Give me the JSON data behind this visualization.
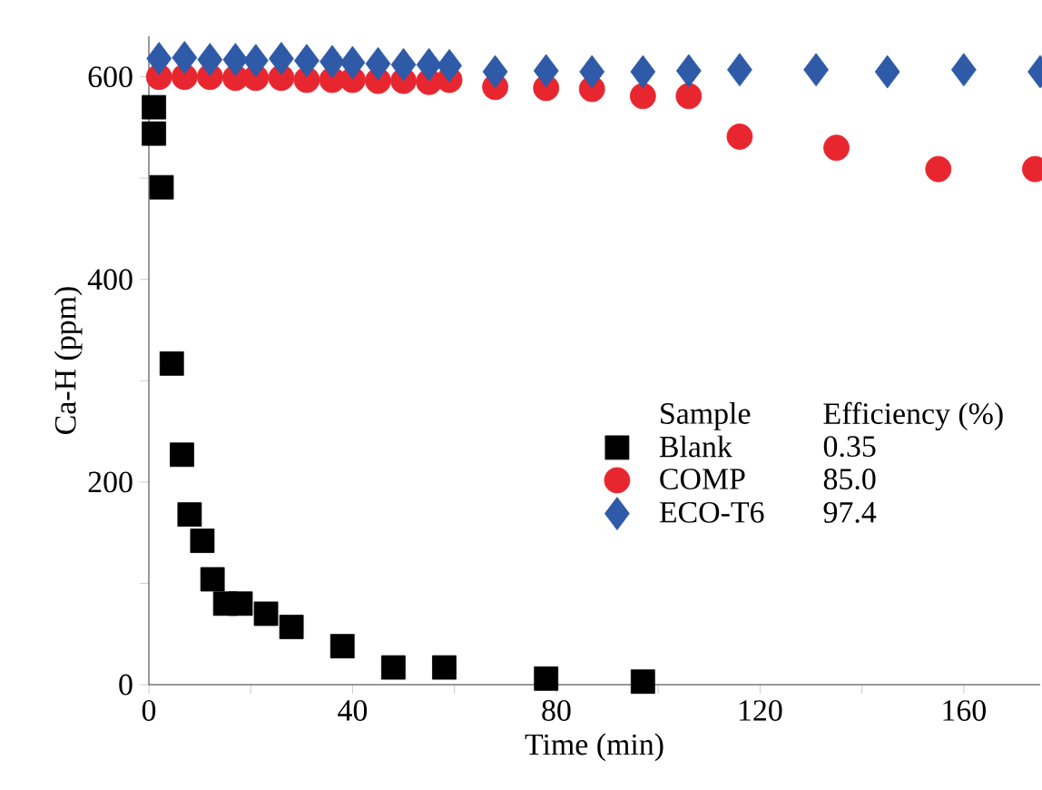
{
  "chart_data": {
    "type": "scatter",
    "xlabel": "Time (min)",
    "ylabel": "Ca-H (ppm)",
    "xlim": [
      0,
      175
    ],
    "ylim": [
      0,
      640
    ],
    "xticks": [
      0,
      {
        "value": 20,
        "label": null
      },
      40,
      {
        "value": 60,
        "label": null
      },
      80,
      {
        "value": 100,
        "label": null
      },
      120,
      {
        "value": 140,
        "label": null
      },
      160
    ],
    "yticks": [
      0,
      {
        "value": 100,
        "label": null
      },
      200,
      {
        "value": 300,
        "label": null
      },
      400,
      {
        "value": 500,
        "label": null
      },
      600
    ],
    "legend": "right",
    "legend_title": "Sample",
    "annotations": [
      "Efficiency (%)",
      "0.35",
      "85.0",
      "97.4"
    ],
    "series": [
      {
        "name": "Blank",
        "color": "#000000",
        "marker": "square",
        "x": [
          1,
          1,
          2.5,
          4.5,
          6.5,
          8,
          10.5,
          12.5,
          15,
          18,
          23,
          28,
          38,
          48,
          58,
          78,
          97
        ],
        "values": [
          570,
          544,
          491,
          317,
          227,
          168,
          142,
          104,
          80,
          80,
          70,
          57,
          38,
          17,
          17,
          6,
          3
        ]
      },
      {
        "name": "COMP",
        "color": "#e8262f",
        "marker": "circle",
        "x": [
          2,
          7,
          12,
          17,
          21,
          26,
          31,
          36,
          40,
          45,
          50,
          55,
          59,
          68,
          78,
          87,
          97,
          106,
          116,
          135,
          155,
          174
        ],
        "values": [
          600,
          600,
          600,
          599,
          599,
          599,
          597,
          597,
          597,
          596,
          596,
          595,
          597,
          590,
          589,
          588,
          581,
          581,
          541,
          530,
          509,
          509
        ]
      },
      {
        "name": "ECO-T6",
        "color": "#2e5aa8",
        "marker": "diamond",
        "x": [
          2,
          7,
          12,
          17,
          21,
          26,
          31,
          36,
          40,
          45,
          50,
          55,
          59,
          68,
          78,
          87,
          97,
          106,
          116,
          131,
          145,
          160,
          175
        ],
        "values": [
          618,
          619,
          617,
          617,
          616,
          618,
          616,
          615,
          614,
          613,
          612,
          612,
          611,
          605,
          606,
          605,
          605,
          606,
          607,
          607,
          605,
          607,
          605
        ]
      }
    ]
  }
}
